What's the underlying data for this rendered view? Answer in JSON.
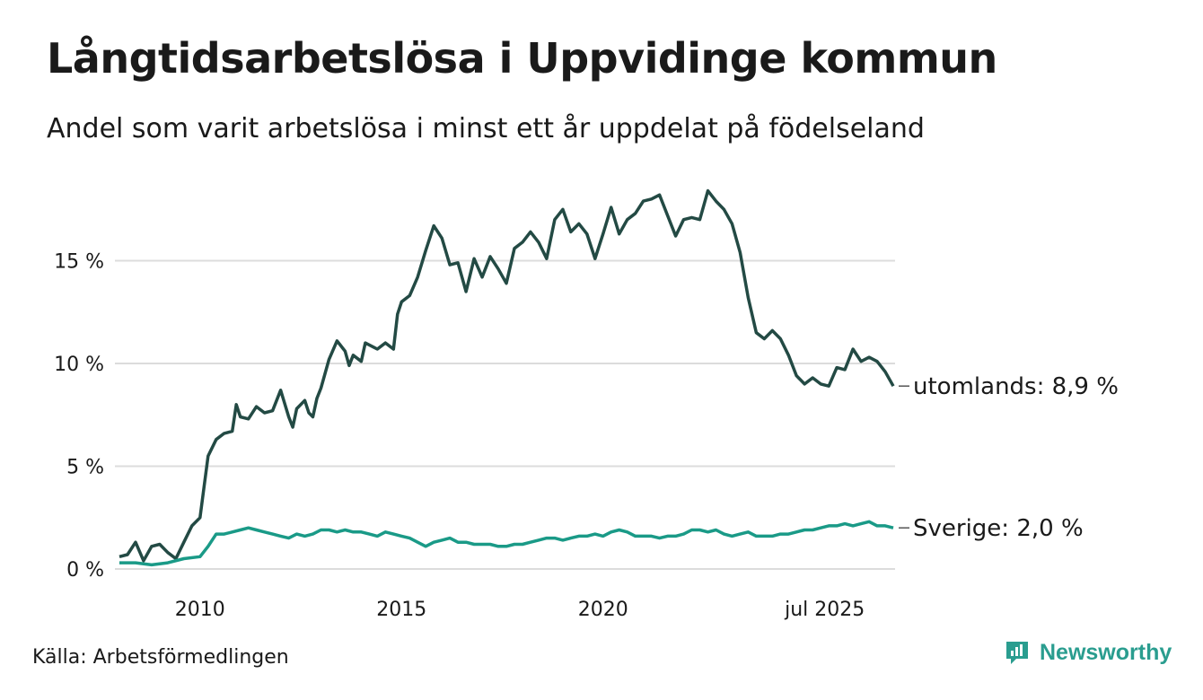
{
  "title": "Långtidsarbetslösa i Uppvidinge kommun",
  "subtitle": "Andel som varit arbetslösa i minst ett år uppdelat på födelseland",
  "source": "Källa: Arbetsförmedlingen",
  "brand": {
    "name": "Newsworthy",
    "icon": "newsworthy-logo-icon",
    "color": "#2a9d8f"
  },
  "chart_data": {
    "type": "line",
    "title": "Långtidsarbetslösa i Uppvidinge kommun",
    "ylabel": "",
    "xlabel": "",
    "ylim": [
      0,
      18.5
    ],
    "yticks": [
      0,
      5,
      10,
      15
    ],
    "ytick_labels": [
      "0 %",
      "5 %",
      "10 %",
      "15 %"
    ],
    "xticks": [
      2010,
      2015,
      2020,
      2025.5
    ],
    "xtick_labels": [
      "2010",
      "2015",
      "2020",
      "jul 2025"
    ],
    "grid": true,
    "legend": "direct labels at line ends (right)",
    "series": [
      {
        "name": "utomlands",
        "end_label": "utomlands: 8,9 %",
        "color": "#234a44",
        "points": [
          [
            2008.0,
            0.6
          ],
          [
            2008.2,
            0.7
          ],
          [
            2008.4,
            1.3
          ],
          [
            2008.6,
            0.4
          ],
          [
            2008.8,
            1.1
          ],
          [
            2009.0,
            1.2
          ],
          [
            2009.2,
            0.8
          ],
          [
            2009.4,
            0.5
          ],
          [
            2009.6,
            1.3
          ],
          [
            2009.8,
            2.1
          ],
          [
            2010.0,
            2.5
          ],
          [
            2010.1,
            4.0
          ],
          [
            2010.2,
            5.5
          ],
          [
            2010.4,
            6.3
          ],
          [
            2010.6,
            6.6
          ],
          [
            2010.8,
            6.7
          ],
          [
            2010.9,
            8.0
          ],
          [
            2011.0,
            7.4
          ],
          [
            2011.2,
            7.3
          ],
          [
            2011.4,
            7.9
          ],
          [
            2011.6,
            7.6
          ],
          [
            2011.8,
            7.7
          ],
          [
            2012.0,
            8.7
          ],
          [
            2012.2,
            7.4
          ],
          [
            2012.3,
            6.9
          ],
          [
            2012.4,
            7.8
          ],
          [
            2012.6,
            8.2
          ],
          [
            2012.7,
            7.6
          ],
          [
            2012.8,
            7.4
          ],
          [
            2012.9,
            8.3
          ],
          [
            2013.0,
            8.8
          ],
          [
            2013.2,
            10.2
          ],
          [
            2013.4,
            11.1
          ],
          [
            2013.6,
            10.6
          ],
          [
            2013.7,
            9.9
          ],
          [
            2013.8,
            10.4
          ],
          [
            2014.0,
            10.1
          ],
          [
            2014.1,
            11.0
          ],
          [
            2014.3,
            10.8
          ],
          [
            2014.4,
            10.7
          ],
          [
            2014.6,
            11.0
          ],
          [
            2014.8,
            10.7
          ],
          [
            2014.9,
            12.4
          ],
          [
            2015.0,
            13.0
          ],
          [
            2015.2,
            13.3
          ],
          [
            2015.4,
            14.2
          ],
          [
            2015.6,
            15.5
          ],
          [
            2015.8,
            16.7
          ],
          [
            2016.0,
            16.1
          ],
          [
            2016.2,
            14.8
          ],
          [
            2016.4,
            14.9
          ],
          [
            2016.6,
            13.5
          ],
          [
            2016.8,
            15.1
          ],
          [
            2017.0,
            14.2
          ],
          [
            2017.2,
            15.2
          ],
          [
            2017.4,
            14.6
          ],
          [
            2017.6,
            13.9
          ],
          [
            2017.8,
            15.6
          ],
          [
            2018.0,
            15.9
          ],
          [
            2018.2,
            16.4
          ],
          [
            2018.4,
            15.9
          ],
          [
            2018.6,
            15.1
          ],
          [
            2018.8,
            17.0
          ],
          [
            2019.0,
            17.5
          ],
          [
            2019.2,
            16.4
          ],
          [
            2019.4,
            16.8
          ],
          [
            2019.6,
            16.3
          ],
          [
            2019.8,
            15.1
          ],
          [
            2020.0,
            16.3
          ],
          [
            2020.2,
            17.6
          ],
          [
            2020.4,
            16.3
          ],
          [
            2020.6,
            17.0
          ],
          [
            2020.8,
            17.3
          ],
          [
            2021.0,
            17.9
          ],
          [
            2021.2,
            18.0
          ],
          [
            2021.4,
            18.2
          ],
          [
            2021.6,
            17.2
          ],
          [
            2021.8,
            16.2
          ],
          [
            2022.0,
            17.0
          ],
          [
            2022.2,
            17.1
          ],
          [
            2022.4,
            17.0
          ],
          [
            2022.6,
            18.4
          ],
          [
            2022.8,
            17.9
          ],
          [
            2023.0,
            17.5
          ],
          [
            2023.2,
            16.8
          ],
          [
            2023.4,
            15.4
          ],
          [
            2023.6,
            13.2
          ],
          [
            2023.8,
            11.5
          ],
          [
            2024.0,
            11.2
          ],
          [
            2024.2,
            11.6
          ],
          [
            2024.4,
            11.2
          ],
          [
            2024.6,
            10.4
          ],
          [
            2024.8,
            9.4
          ],
          [
            2025.0,
            9.0
          ],
          [
            2025.2,
            9.3
          ],
          [
            2025.4,
            9.0
          ],
          [
            2025.6,
            8.9
          ],
          [
            2025.8,
            9.8
          ],
          [
            2026.0,
            9.7
          ],
          [
            2026.2,
            10.7
          ],
          [
            2026.4,
            10.1
          ],
          [
            2026.6,
            10.3
          ],
          [
            2026.8,
            10.1
          ],
          [
            2027.0,
            9.6
          ],
          [
            2027.2,
            8.9
          ]
        ]
      },
      {
        "name": "Sverige",
        "end_label": "Sverige: 2,0 %",
        "color": "#1a9a87",
        "points": [
          [
            2008.0,
            0.3
          ],
          [
            2008.4,
            0.3
          ],
          [
            2008.8,
            0.2
          ],
          [
            2009.2,
            0.3
          ],
          [
            2009.6,
            0.5
          ],
          [
            2010.0,
            0.6
          ],
          [
            2010.2,
            1.1
          ],
          [
            2010.4,
            1.7
          ],
          [
            2010.6,
            1.7
          ],
          [
            2010.8,
            1.8
          ],
          [
            2011.0,
            1.9
          ],
          [
            2011.2,
            2.0
          ],
          [
            2011.4,
            1.9
          ],
          [
            2011.6,
            1.8
          ],
          [
            2011.8,
            1.7
          ],
          [
            2012.0,
            1.6
          ],
          [
            2012.2,
            1.5
          ],
          [
            2012.4,
            1.7
          ],
          [
            2012.6,
            1.6
          ],
          [
            2012.8,
            1.7
          ],
          [
            2013.0,
            1.9
          ],
          [
            2013.2,
            1.9
          ],
          [
            2013.4,
            1.8
          ],
          [
            2013.6,
            1.9
          ],
          [
            2013.8,
            1.8
          ],
          [
            2014.0,
            1.8
          ],
          [
            2014.2,
            1.7
          ],
          [
            2014.4,
            1.6
          ],
          [
            2014.6,
            1.8
          ],
          [
            2014.8,
            1.7
          ],
          [
            2015.0,
            1.6
          ],
          [
            2015.2,
            1.5
          ],
          [
            2015.4,
            1.3
          ],
          [
            2015.6,
            1.1
          ],
          [
            2015.8,
            1.3
          ],
          [
            2016.0,
            1.4
          ],
          [
            2016.2,
            1.5
          ],
          [
            2016.4,
            1.3
          ],
          [
            2016.6,
            1.3
          ],
          [
            2016.8,
            1.2
          ],
          [
            2017.0,
            1.2
          ],
          [
            2017.2,
            1.2
          ],
          [
            2017.4,
            1.1
          ],
          [
            2017.6,
            1.1
          ],
          [
            2017.8,
            1.2
          ],
          [
            2018.0,
            1.2
          ],
          [
            2018.2,
            1.3
          ],
          [
            2018.4,
            1.4
          ],
          [
            2018.6,
            1.5
          ],
          [
            2018.8,
            1.5
          ],
          [
            2019.0,
            1.4
          ],
          [
            2019.2,
            1.5
          ],
          [
            2019.4,
            1.6
          ],
          [
            2019.6,
            1.6
          ],
          [
            2019.8,
            1.7
          ],
          [
            2020.0,
            1.6
          ],
          [
            2020.2,
            1.8
          ],
          [
            2020.4,
            1.9
          ],
          [
            2020.6,
            1.8
          ],
          [
            2020.8,
            1.6
          ],
          [
            2021.0,
            1.6
          ],
          [
            2021.2,
            1.6
          ],
          [
            2021.4,
            1.5
          ],
          [
            2021.6,
            1.6
          ],
          [
            2021.8,
            1.6
          ],
          [
            2022.0,
            1.7
          ],
          [
            2022.2,
            1.9
          ],
          [
            2022.4,
            1.9
          ],
          [
            2022.6,
            1.8
          ],
          [
            2022.8,
            1.9
          ],
          [
            2023.0,
            1.7
          ],
          [
            2023.2,
            1.6
          ],
          [
            2023.4,
            1.7
          ],
          [
            2023.6,
            1.8
          ],
          [
            2023.8,
            1.6
          ],
          [
            2024.0,
            1.6
          ],
          [
            2024.2,
            1.6
          ],
          [
            2024.4,
            1.7
          ],
          [
            2024.6,
            1.7
          ],
          [
            2024.8,
            1.8
          ],
          [
            2025.0,
            1.9
          ],
          [
            2025.2,
            1.9
          ],
          [
            2025.4,
            2.0
          ],
          [
            2025.6,
            2.1
          ],
          [
            2025.8,
            2.1
          ],
          [
            2026.0,
            2.2
          ],
          [
            2026.2,
            2.1
          ],
          [
            2026.4,
            2.2
          ],
          [
            2026.6,
            2.3
          ],
          [
            2026.8,
            2.1
          ],
          [
            2027.0,
            2.1
          ],
          [
            2027.2,
            2.0
          ]
        ]
      }
    ]
  }
}
